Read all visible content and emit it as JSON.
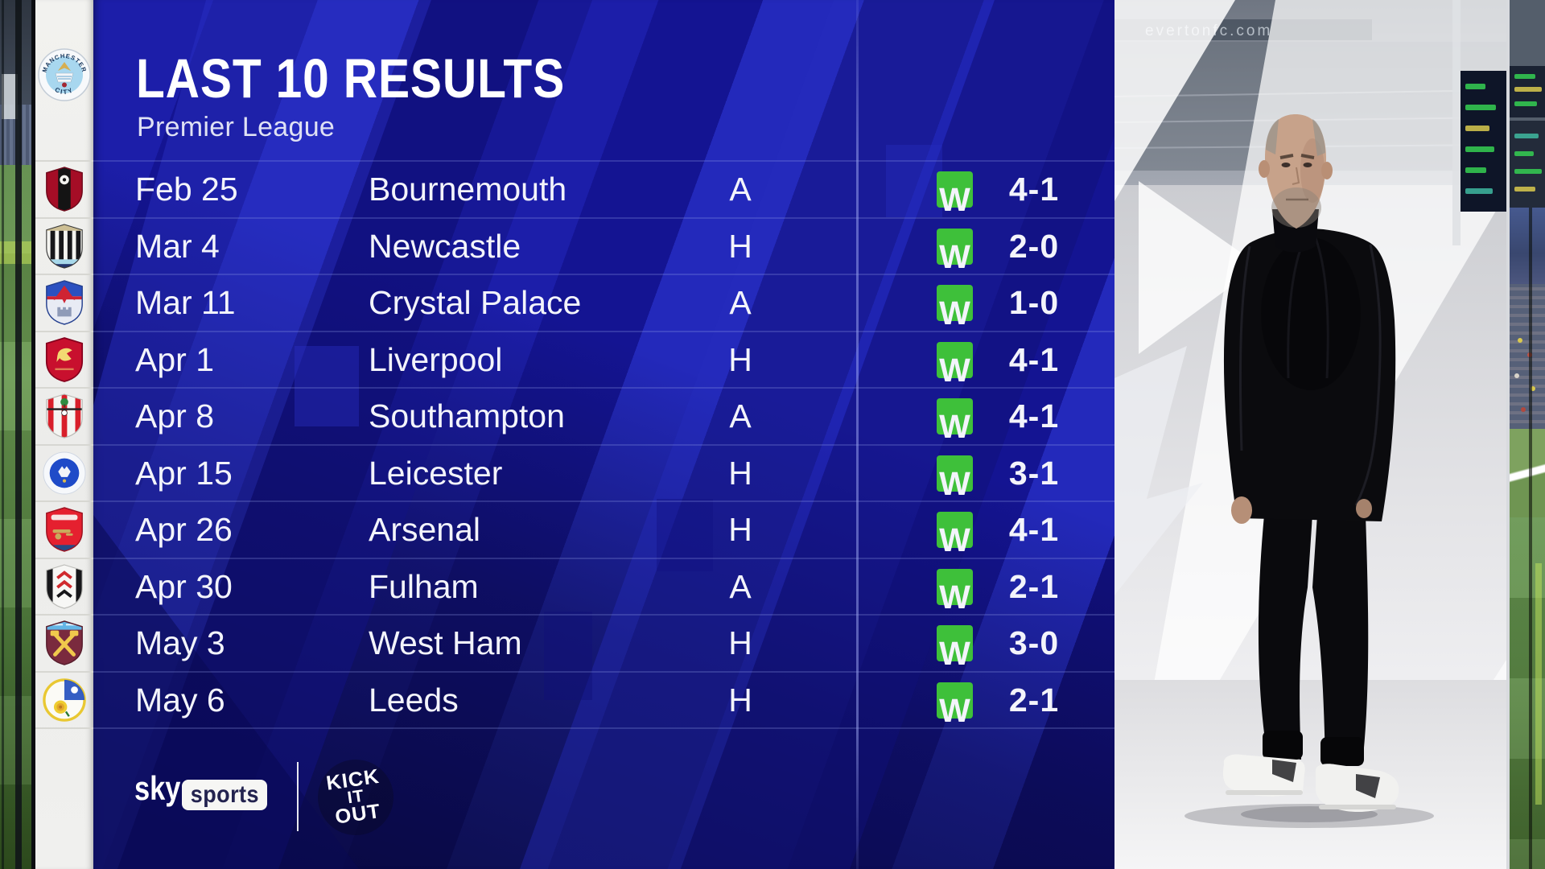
{
  "header": {
    "title": "LAST 10 RESULTS",
    "subtitle": "Premier League"
  },
  "club": {
    "name": "Manchester City",
    "crest_text_top": "MANCHESTER",
    "crest_text_bottom": "CITY"
  },
  "results": [
    {
      "date": "Feb 25",
      "opponent": "Bournemouth",
      "venue": "A",
      "result": "W",
      "score": "4-1",
      "crest": "bournemouth"
    },
    {
      "date": "Mar 4",
      "opponent": "Newcastle",
      "venue": "H",
      "result": "W",
      "score": "2-0",
      "crest": "newcastle"
    },
    {
      "date": "Mar 11",
      "opponent": "Crystal Palace",
      "venue": "A",
      "result": "W",
      "score": "1-0",
      "crest": "crystal-palace"
    },
    {
      "date": "Apr 1",
      "opponent": "Liverpool",
      "venue": "H",
      "result": "W",
      "score": "4-1",
      "crest": "liverpool"
    },
    {
      "date": "Apr 8",
      "opponent": "Southampton",
      "venue": "A",
      "result": "W",
      "score": "4-1",
      "crest": "southampton"
    },
    {
      "date": "Apr 15",
      "opponent": "Leicester",
      "venue": "H",
      "result": "W",
      "score": "3-1",
      "crest": "leicester"
    },
    {
      "date": "Apr 26",
      "opponent": "Arsenal",
      "venue": "H",
      "result": "W",
      "score": "4-1",
      "crest": "arsenal"
    },
    {
      "date": "Apr 30",
      "opponent": "Fulham",
      "venue": "A",
      "result": "W",
      "score": "2-1",
      "crest": "fulham"
    },
    {
      "date": "May 3",
      "opponent": "West Ham",
      "venue": "H",
      "result": "W",
      "score": "3-0",
      "crest": "west-ham"
    },
    {
      "date": "May 6",
      "opponent": "Leeds",
      "venue": "H",
      "result": "W",
      "score": "2-1",
      "crest": "leeds"
    }
  ],
  "footer": {
    "sky_word": "sky",
    "sports_word": "sports",
    "kick_it_out_lines": [
      "KICK",
      "IT",
      "OUT"
    ]
  },
  "photo": {
    "banner_text": "evertonfc.com"
  },
  "colors": {
    "win_badge": "#3ec03a",
    "panel_base": "#1c1ea9",
    "panel_bright": "#2329bb",
    "panel_dark": "#11107f",
    "panel_darkest": "#0a0a50",
    "text": "#f3f4fb"
  }
}
